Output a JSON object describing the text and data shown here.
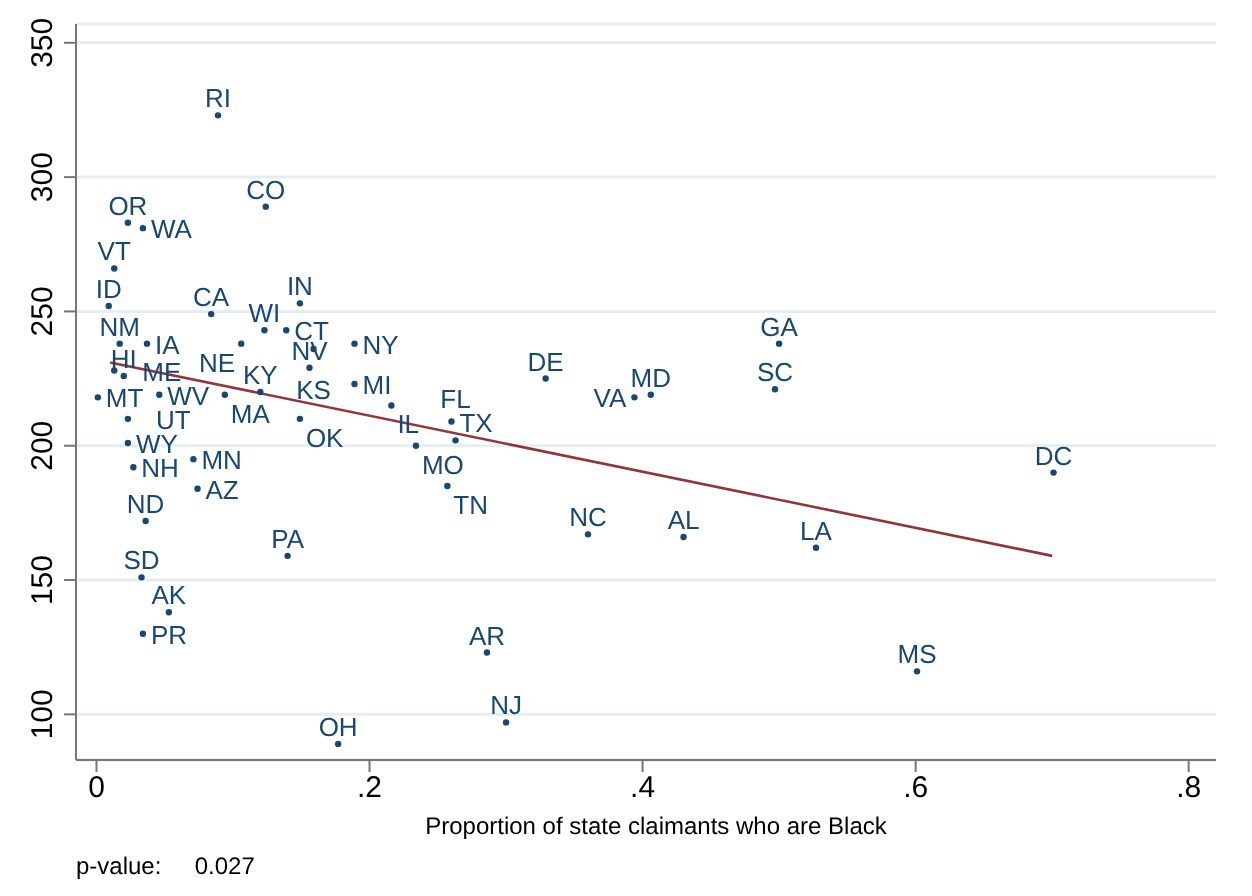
{
  "chart_data": {
    "type": "scatter",
    "xlabel": "Proportion of state claimants who are Black",
    "xlim": [
      -0.015,
      0.82
    ],
    "ylim": [
      83,
      357
    ],
    "xticks": [
      0,
      {
        "value": 0.2,
        "label": ".2"
      },
      {
        "value": 0.4,
        "label": ".4"
      },
      {
        "value": 0.6,
        "label": ".6"
      },
      {
        "value": 0.8,
        "label": ".8"
      }
    ],
    "yticks": [
      100,
      150,
      200,
      250,
      300,
      350
    ],
    "grid": "y",
    "legend": false,
    "annotations": [
      "p-value:     0.027"
    ],
    "series": [
      {
        "type": "line",
        "color": "#90353b",
        "x": [
          0.01,
          0.7
        ],
        "values": [
          231,
          159
        ]
      },
      {
        "type": "scatter",
        "color": "#1a476f",
        "marker": "circle",
        "x": [
          0.089,
          0.124,
          0.023,
          0.034,
          0.013,
          0.009,
          0.017,
          0.037,
          0.013,
          0.02,
          0.001,
          0.046,
          0.094,
          0.12,
          0.023,
          0.023,
          0.027,
          0.071,
          0.074,
          0.036,
          0.033,
          0.053,
          0.034,
          0.14,
          0.177,
          0.084,
          0.106,
          0.123,
          0.139,
          0.149,
          0.159,
          0.189,
          0.156,
          0.189,
          0.149,
          0.216,
          0.234,
          0.26,
          0.263,
          0.257,
          0.329,
          0.394,
          0.406,
          0.5,
          0.497,
          0.701,
          0.36,
          0.43,
          0.527,
          0.286,
          0.601,
          0.3
        ],
        "values": [
          323,
          289,
          283,
          281,
          266,
          252,
          238,
          238,
          228,
          226,
          218,
          219,
          219,
          220,
          210,
          201,
          192,
          195,
          184,
          172,
          151,
          138,
          130,
          159,
          89,
          249,
          238,
          243,
          243,
          253,
          236,
          238,
          229,
          223,
          210,
          215,
          200,
          209,
          202,
          185,
          225,
          218,
          219,
          238,
          221,
          190,
          167,
          166,
          162,
          123,
          116,
          97
        ],
        "value_labels": [
          "RI",
          "CO",
          "OR",
          "WA",
          "VT",
          "ID",
          "NM",
          "IA",
          "ME",
          "HI",
          "MT",
          "WV",
          "MA",
          "KY",
          "UT",
          "WY",
          "NH",
          "MN",
          "AZ",
          "ND",
          "SD",
          "AK",
          "PR",
          "PA",
          "OH",
          "CA",
          "NE",
          "WI",
          "CT",
          "IN",
          "KS",
          "NY",
          "NV",
          "MI",
          "OK",
          "IL",
          "MO",
          "TX",
          "FL",
          "TN",
          "DE",
          "VA",
          "MD",
          "GA",
          "SC",
          "DC",
          "NC",
          "AL",
          "LA",
          "AR",
          "MS",
          "NJ"
        ]
      }
    ]
  }
}
